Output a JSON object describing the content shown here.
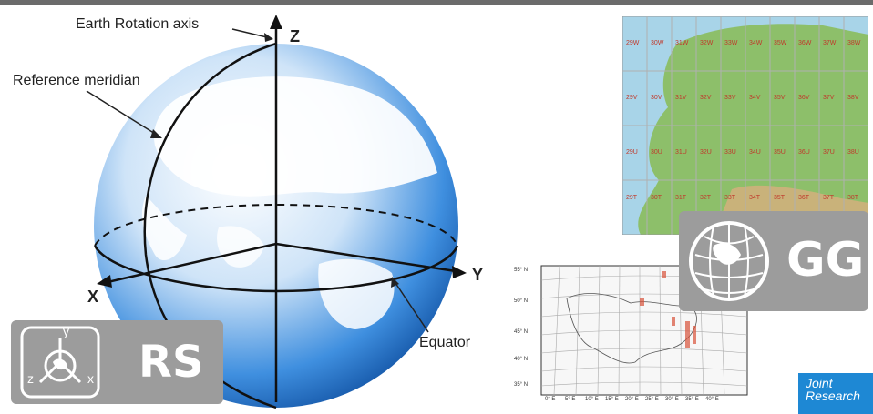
{
  "globe": {
    "axis_label": "Earth Rotation axis",
    "meridian_label": "Reference meridian",
    "equator_label": "Equator",
    "x_label": "X",
    "y_label": "Y",
    "z_label": "Z"
  },
  "badges": {
    "rs": {
      "text": "RS",
      "icon_letters": [
        "y",
        "z",
        "x"
      ]
    },
    "gg": {
      "text": "GG"
    }
  },
  "utm_map": {
    "zone_row_1": [
      "29W",
      "30W",
      "31W",
      "32W",
      "33W",
      "34W",
      "35W",
      "36W",
      "37W",
      "38W"
    ],
    "zone_row_2": [
      "29V",
      "30V",
      "31V",
      "32V",
      "33V",
      "34V",
      "35V",
      "36V",
      "37V",
      "38V"
    ],
    "zone_row_3": [
      "29U",
      "30U",
      "31U",
      "32U",
      "33U",
      "34U",
      "35U",
      "36U",
      "37U",
      "38U"
    ],
    "zone_row_4": [
      "29T",
      "30T",
      "31T",
      "32T",
      "33T",
      "34T",
      "35T",
      "36T",
      "37T",
      "38T"
    ]
  },
  "grid_map": {
    "lat_labels": [
      "55° N",
      "50° N",
      "45° N",
      "40° N",
      "35° N"
    ],
    "lon_labels": [
      "0° E",
      "5° E",
      "10° E",
      "15° E",
      "20° E",
      "25° E",
      "30° E",
      "35° E",
      "40° E"
    ]
  },
  "logo": {
    "line1": "Joint",
    "line2": "Research"
  },
  "colors": {
    "badge_gray": "#9c9c9c",
    "jrc_blue": "#1e88d4",
    "globe_blue": "#2f7fd6"
  }
}
